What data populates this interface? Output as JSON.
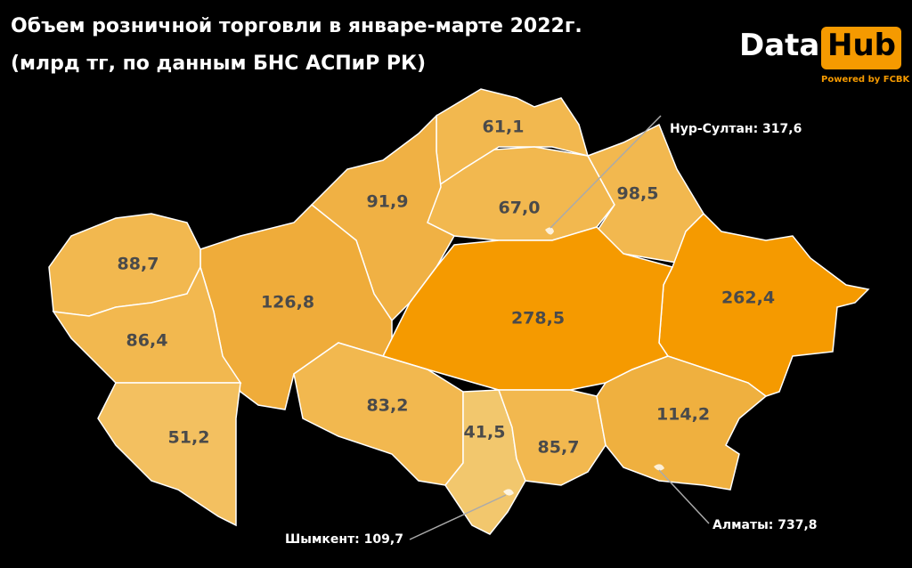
{
  "header": {
    "title_lines": [
      "Объем розничной торговли в январе-марте 2022г.",
      "(млрд тг, по данным БНС АСПиР РК)"
    ]
  },
  "logo": {
    "brand": "Data",
    "brand_highlight": "Hub",
    "tagline": "Powered by FCBK"
  },
  "map": {
    "regions": [
      {
        "label": "61,1",
        "color": "#f2b84f"
      },
      {
        "label": "67,0",
        "color": "#f2b84f"
      },
      {
        "label": "98,5",
        "color": "#f2b84f"
      },
      {
        "label": "91,9",
        "color": "#f0b144"
      },
      {
        "label": "262,4",
        "color": "#f59a00"
      },
      {
        "label": "278,5",
        "color": "#f59a00"
      },
      {
        "label": "126,8",
        "color": "#efac3a"
      },
      {
        "label": "88,7",
        "color": "#f2b84f"
      },
      {
        "label": "86,4",
        "color": "#f2b84f"
      },
      {
        "label": "51,2",
        "color": "#f3c060"
      },
      {
        "label": "83,2",
        "color": "#f2b84f"
      },
      {
        "label": "41,5",
        "color": "#f2c76d"
      },
      {
        "label": "85,7",
        "color": "#f2b84f"
      },
      {
        "label": "114,2",
        "color": "#efb03f"
      }
    ],
    "cities": [
      {
        "label": "Нур-Султан: 317,6"
      },
      {
        "label": "Алматы: 737,8"
      },
      {
        "label": "Шымкент: 109,7"
      }
    ]
  }
}
